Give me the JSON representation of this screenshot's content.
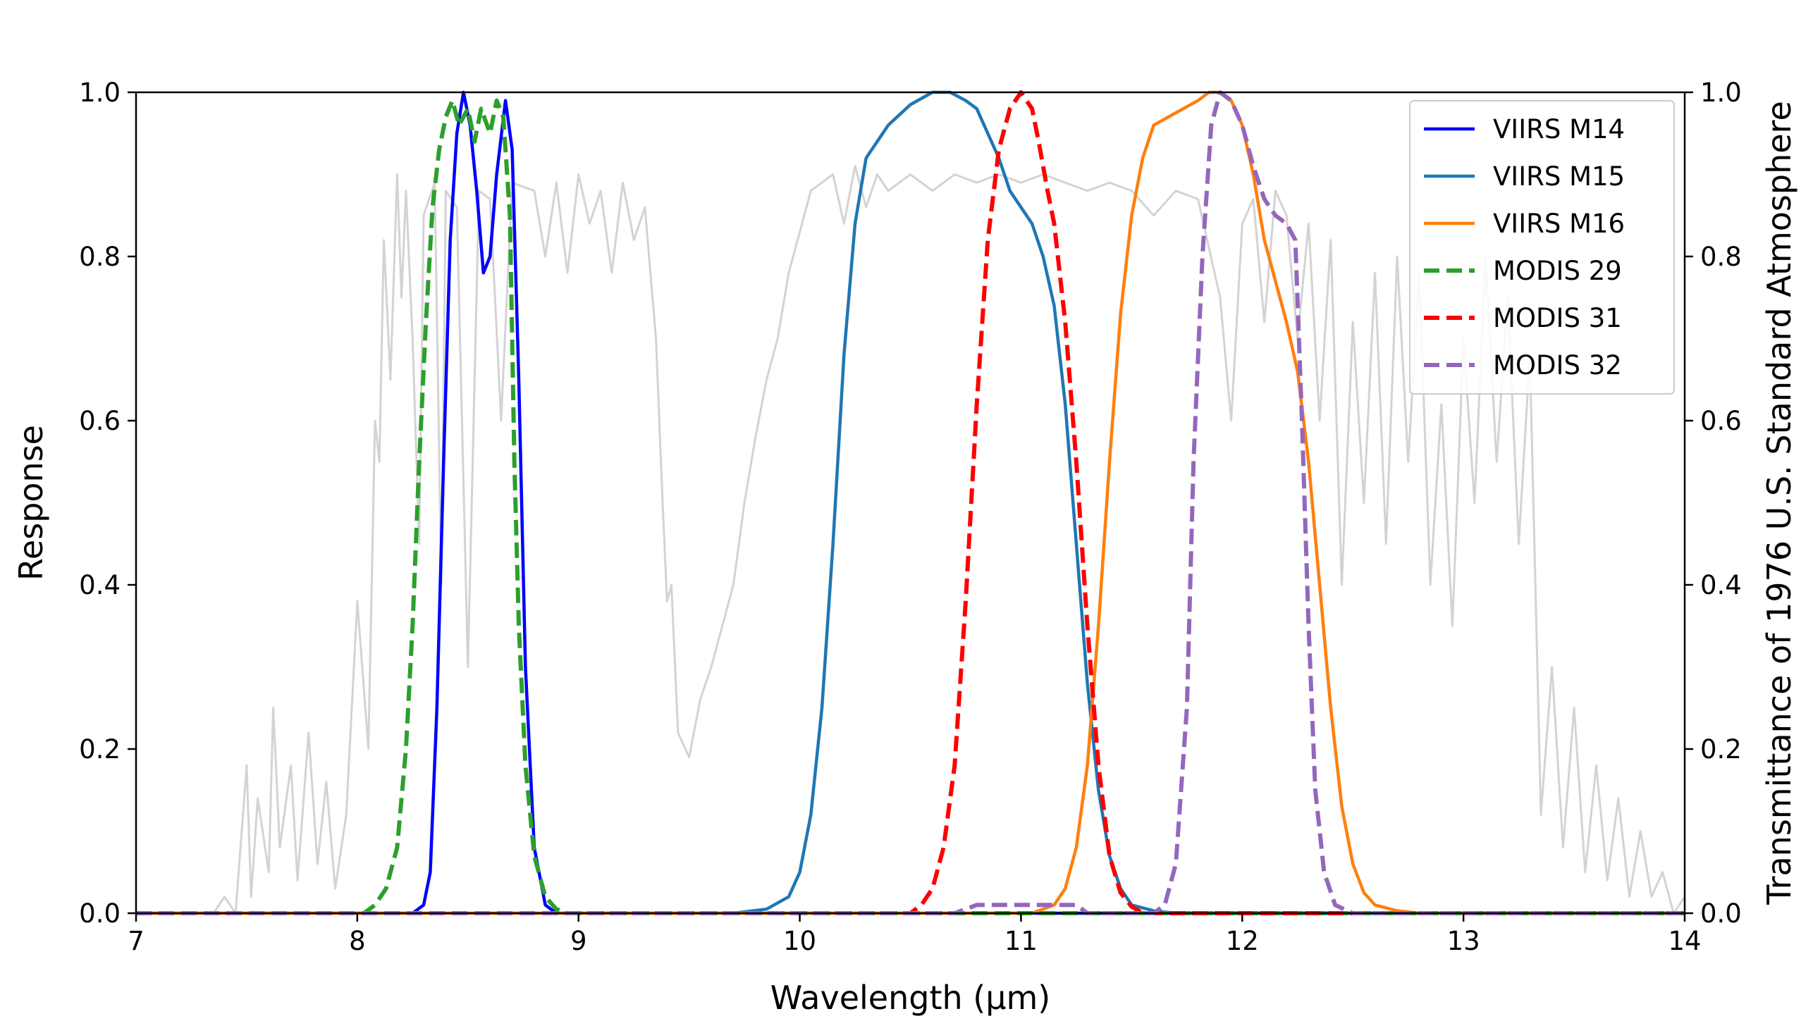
{
  "chart_data": {
    "type": "line",
    "xlabel": "Wavelength (μm)",
    "ylabel": "Response",
    "y2label": "Transmittance of 1976 U.S. Standard Atmosphere",
    "xlim": [
      7,
      14
    ],
    "ylim": [
      0,
      1.0
    ],
    "y2lim": [
      0,
      1.0
    ],
    "xticks": [
      "7",
      "8",
      "9",
      "10",
      "11",
      "12",
      "13",
      "14"
    ],
    "yticks": [
      "0.0",
      "0.2",
      "0.4",
      "0.6",
      "0.8",
      "1.0"
    ],
    "y2ticks": [
      "0.0",
      "0.2",
      "0.4",
      "0.6",
      "0.8",
      "1.0"
    ],
    "grid": false,
    "legend_position": "top-right",
    "background_series": {
      "name": "Transmittance",
      "axis": "right",
      "color": "#d3d3d3",
      "points": [
        [
          7.0,
          0.0
        ],
        [
          7.35,
          0.0
        ],
        [
          7.4,
          0.02
        ],
        [
          7.45,
          0.0
        ],
        [
          7.5,
          0.18
        ],
        [
          7.52,
          0.02
        ],
        [
          7.55,
          0.14
        ],
        [
          7.6,
          0.05
        ],
        [
          7.62,
          0.25
        ],
        [
          7.65,
          0.08
        ],
        [
          7.7,
          0.18
        ],
        [
          7.73,
          0.04
        ],
        [
          7.78,
          0.22
        ],
        [
          7.82,
          0.06
        ],
        [
          7.86,
          0.16
        ],
        [
          7.9,
          0.03
        ],
        [
          7.95,
          0.12
        ],
        [
          8.0,
          0.38
        ],
        [
          8.05,
          0.2
        ],
        [
          8.08,
          0.6
        ],
        [
          8.1,
          0.55
        ],
        [
          8.12,
          0.82
        ],
        [
          8.15,
          0.65
        ],
        [
          8.18,
          0.9
        ],
        [
          8.2,
          0.75
        ],
        [
          8.22,
          0.88
        ],
        [
          8.25,
          0.7
        ],
        [
          8.28,
          0.45
        ],
        [
          8.3,
          0.85
        ],
        [
          8.35,
          0.89
        ],
        [
          8.38,
          0.4
        ],
        [
          8.4,
          0.88
        ],
        [
          8.45,
          0.86
        ],
        [
          8.5,
          0.3
        ],
        [
          8.55,
          0.88
        ],
        [
          8.6,
          0.87
        ],
        [
          8.65,
          0.6
        ],
        [
          8.7,
          0.89
        ],
        [
          8.8,
          0.88
        ],
        [
          8.85,
          0.8
        ],
        [
          8.9,
          0.89
        ],
        [
          8.95,
          0.78
        ],
        [
          9.0,
          0.9
        ],
        [
          9.05,
          0.84
        ],
        [
          9.1,
          0.88
        ],
        [
          9.15,
          0.78
        ],
        [
          9.2,
          0.89
        ],
        [
          9.25,
          0.82
        ],
        [
          9.3,
          0.86
        ],
        [
          9.35,
          0.7
        ],
        [
          9.38,
          0.5
        ],
        [
          9.4,
          0.38
        ],
        [
          9.42,
          0.4
        ],
        [
          9.45,
          0.22
        ],
        [
          9.5,
          0.19
        ],
        [
          9.55,
          0.26
        ],
        [
          9.6,
          0.3
        ],
        [
          9.65,
          0.35
        ],
        [
          9.7,
          0.4
        ],
        [
          9.75,
          0.5
        ],
        [
          9.8,
          0.58
        ],
        [
          9.85,
          0.65
        ],
        [
          9.9,
          0.7
        ],
        [
          9.95,
          0.78
        ],
        [
          10.0,
          0.83
        ],
        [
          10.05,
          0.88
        ],
        [
          10.1,
          0.89
        ],
        [
          10.15,
          0.9
        ],
        [
          10.2,
          0.84
        ],
        [
          10.25,
          0.91
        ],
        [
          10.3,
          0.86
        ],
        [
          10.35,
          0.9
        ],
        [
          10.4,
          0.88
        ],
        [
          10.5,
          0.9
        ],
        [
          10.6,
          0.88
        ],
        [
          10.7,
          0.9
        ],
        [
          10.8,
          0.89
        ],
        [
          10.9,
          0.9
        ],
        [
          11.0,
          0.89
        ],
        [
          11.1,
          0.9
        ],
        [
          11.2,
          0.89
        ],
        [
          11.3,
          0.88
        ],
        [
          11.4,
          0.89
        ],
        [
          11.5,
          0.88
        ],
        [
          11.6,
          0.85
        ],
        [
          11.7,
          0.88
        ],
        [
          11.8,
          0.87
        ],
        [
          11.9,
          0.75
        ],
        [
          11.95,
          0.6
        ],
        [
          12.0,
          0.84
        ],
        [
          12.05,
          0.87
        ],
        [
          12.1,
          0.72
        ],
        [
          12.15,
          0.88
        ],
        [
          12.2,
          0.85
        ],
        [
          12.25,
          0.7
        ],
        [
          12.3,
          0.84
        ],
        [
          12.35,
          0.6
        ],
        [
          12.4,
          0.82
        ],
        [
          12.45,
          0.4
        ],
        [
          12.5,
          0.72
        ],
        [
          12.55,
          0.5
        ],
        [
          12.6,
          0.78
        ],
        [
          12.65,
          0.45
        ],
        [
          12.7,
          0.8
        ],
        [
          12.75,
          0.55
        ],
        [
          12.8,
          0.78
        ],
        [
          12.85,
          0.4
        ],
        [
          12.9,
          0.62
        ],
        [
          12.95,
          0.35
        ],
        [
          13.0,
          0.7
        ],
        [
          13.05,
          0.5
        ],
        [
          13.1,
          0.8
        ],
        [
          13.15,
          0.55
        ],
        [
          13.2,
          0.75
        ],
        [
          13.25,
          0.45
        ],
        [
          13.3,
          0.68
        ],
        [
          13.35,
          0.12
        ],
        [
          13.4,
          0.3
        ],
        [
          13.45,
          0.08
        ],
        [
          13.5,
          0.25
        ],
        [
          13.55,
          0.05
        ],
        [
          13.6,
          0.18
        ],
        [
          13.65,
          0.04
        ],
        [
          13.7,
          0.14
        ],
        [
          13.75,
          0.02
        ],
        [
          13.8,
          0.1
        ],
        [
          13.85,
          0.02
        ],
        [
          13.9,
          0.05
        ],
        [
          13.95,
          0.0
        ],
        [
          14.0,
          0.02
        ]
      ]
    },
    "series": [
      {
        "name": "VIIRS M14",
        "color": "#0000ff",
        "dash": "solid",
        "width": 4.5,
        "points": [
          [
            7.0,
            0.0
          ],
          [
            8.25,
            0.0
          ],
          [
            8.3,
            0.01
          ],
          [
            8.33,
            0.05
          ],
          [
            8.36,
            0.25
          ],
          [
            8.39,
            0.55
          ],
          [
            8.42,
            0.82
          ],
          [
            8.45,
            0.95
          ],
          [
            8.48,
            1.0
          ],
          [
            8.51,
            0.96
          ],
          [
            8.54,
            0.88
          ],
          [
            8.57,
            0.78
          ],
          [
            8.6,
            0.8
          ],
          [
            8.63,
            0.9
          ],
          [
            8.67,
            0.99
          ],
          [
            8.7,
            0.93
          ],
          [
            8.73,
            0.65
          ],
          [
            8.76,
            0.3
          ],
          [
            8.8,
            0.08
          ],
          [
            8.85,
            0.01
          ],
          [
            8.9,
            0.0
          ],
          [
            14.0,
            0.0
          ]
        ]
      },
      {
        "name": "VIIRS M15",
        "color": "#1f77b4",
        "dash": "solid",
        "width": 4.5,
        "points": [
          [
            7.0,
            0.0
          ],
          [
            9.7,
            0.0
          ],
          [
            9.85,
            0.005
          ],
          [
            9.95,
            0.02
          ],
          [
            10.0,
            0.05
          ],
          [
            10.05,
            0.12
          ],
          [
            10.1,
            0.25
          ],
          [
            10.15,
            0.45
          ],
          [
            10.2,
            0.68
          ],
          [
            10.25,
            0.84
          ],
          [
            10.3,
            0.92
          ],
          [
            10.4,
            0.96
          ],
          [
            10.5,
            0.985
          ],
          [
            10.6,
            1.0
          ],
          [
            10.68,
            1.0
          ],
          [
            10.75,
            0.99
          ],
          [
            10.8,
            0.98
          ],
          [
            10.85,
            0.95
          ],
          [
            10.9,
            0.92
          ],
          [
            10.95,
            0.88
          ],
          [
            11.0,
            0.86
          ],
          [
            11.05,
            0.84
          ],
          [
            11.1,
            0.8
          ],
          [
            11.15,
            0.74
          ],
          [
            11.2,
            0.62
          ],
          [
            11.25,
            0.45
          ],
          [
            11.3,
            0.28
          ],
          [
            11.35,
            0.15
          ],
          [
            11.4,
            0.07
          ],
          [
            11.45,
            0.03
          ],
          [
            11.5,
            0.01
          ],
          [
            11.6,
            0.003
          ],
          [
            11.7,
            0.0
          ],
          [
            14.0,
            0.0
          ]
        ]
      },
      {
        "name": "VIIRS M16",
        "color": "#ff7f0e",
        "dash": "solid",
        "width": 4.5,
        "points": [
          [
            7.0,
            0.0
          ],
          [
            11.05,
            0.0
          ],
          [
            11.1,
            0.005
          ],
          [
            11.15,
            0.01
          ],
          [
            11.2,
            0.03
          ],
          [
            11.25,
            0.08
          ],
          [
            11.3,
            0.18
          ],
          [
            11.35,
            0.35
          ],
          [
            11.4,
            0.55
          ],
          [
            11.45,
            0.73
          ],
          [
            11.5,
            0.85
          ],
          [
            11.55,
            0.92
          ],
          [
            11.6,
            0.96
          ],
          [
            11.7,
            0.975
          ],
          [
            11.8,
            0.99
          ],
          [
            11.85,
            1.0
          ],
          [
            11.9,
            1.0
          ],
          [
            11.95,
            0.99
          ],
          [
            12.0,
            0.96
          ],
          [
            12.05,
            0.9
          ],
          [
            12.1,
            0.82
          ],
          [
            12.15,
            0.77
          ],
          [
            12.2,
            0.72
          ],
          [
            12.25,
            0.66
          ],
          [
            12.3,
            0.55
          ],
          [
            12.35,
            0.4
          ],
          [
            12.4,
            0.25
          ],
          [
            12.45,
            0.13
          ],
          [
            12.5,
            0.06
          ],
          [
            12.55,
            0.025
          ],
          [
            12.6,
            0.01
          ],
          [
            12.7,
            0.003
          ],
          [
            12.8,
            0.0
          ],
          [
            14.0,
            0.0
          ]
        ]
      },
      {
        "name": "MODIS 29",
        "color": "#2ca02c",
        "dash": "dashed",
        "width": 6,
        "points": [
          [
            7.0,
            0.0
          ],
          [
            8.03,
            0.0
          ],
          [
            8.08,
            0.01
          ],
          [
            8.13,
            0.03
          ],
          [
            8.18,
            0.08
          ],
          [
            8.22,
            0.2
          ],
          [
            8.25,
            0.35
          ],
          [
            8.28,
            0.55
          ],
          [
            8.31,
            0.72
          ],
          [
            8.34,
            0.86
          ],
          [
            8.37,
            0.93
          ],
          [
            8.4,
            0.97
          ],
          [
            8.43,
            0.99
          ],
          [
            8.46,
            0.96
          ],
          [
            8.5,
            0.98
          ],
          [
            8.53,
            0.94
          ],
          [
            8.56,
            0.98
          ],
          [
            8.6,
            0.95
          ],
          [
            8.63,
            0.99
          ],
          [
            8.66,
            0.97
          ],
          [
            8.69,
            0.85
          ],
          [
            8.71,
            0.55
          ],
          [
            8.73,
            0.35
          ],
          [
            8.76,
            0.18
          ],
          [
            8.8,
            0.07
          ],
          [
            8.85,
            0.02
          ],
          [
            8.9,
            0.005
          ],
          [
            8.95,
            0.0
          ],
          [
            14.0,
            0.0
          ]
        ]
      },
      {
        "name": "MODIS 31",
        "color": "#ff0000",
        "dash": "dashed",
        "width": 6,
        "points": [
          [
            7.0,
            0.0
          ],
          [
            10.5,
            0.0
          ],
          [
            10.55,
            0.01
          ],
          [
            10.6,
            0.03
          ],
          [
            10.65,
            0.08
          ],
          [
            10.7,
            0.18
          ],
          [
            10.75,
            0.38
          ],
          [
            10.8,
            0.62
          ],
          [
            10.85,
            0.82
          ],
          [
            10.9,
            0.93
          ],
          [
            10.95,
            0.98
          ],
          [
            11.0,
            1.0
          ],
          [
            11.05,
            0.98
          ],
          [
            11.08,
            0.94
          ],
          [
            11.12,
            0.88
          ],
          [
            11.15,
            0.84
          ],
          [
            11.2,
            0.72
          ],
          [
            11.25,
            0.55
          ],
          [
            11.3,
            0.35
          ],
          [
            11.35,
            0.18
          ],
          [
            11.4,
            0.07
          ],
          [
            11.45,
            0.025
          ],
          [
            11.5,
            0.008
          ],
          [
            11.55,
            0.0
          ],
          [
            14.0,
            0.0
          ]
        ]
      },
      {
        "name": "MODIS 32",
        "color": "#9467bd",
        "dash": "dashed",
        "width": 6,
        "points": [
          [
            7.0,
            0.0
          ],
          [
            10.7,
            0.0
          ],
          [
            10.8,
            0.01
          ],
          [
            11.25,
            0.01
          ],
          [
            11.3,
            0.0
          ],
          [
            11.6,
            0.0
          ],
          [
            11.65,
            0.01
          ],
          [
            11.7,
            0.06
          ],
          [
            11.75,
            0.25
          ],
          [
            11.78,
            0.55
          ],
          [
            11.82,
            0.8
          ],
          [
            11.86,
            0.96
          ],
          [
            11.9,
            1.0
          ],
          [
            11.95,
            0.99
          ],
          [
            12.0,
            0.96
          ],
          [
            12.05,
            0.91
          ],
          [
            12.1,
            0.87
          ],
          [
            12.15,
            0.85
          ],
          [
            12.2,
            0.84
          ],
          [
            12.24,
            0.82
          ],
          [
            12.27,
            0.6
          ],
          [
            12.3,
            0.35
          ],
          [
            12.33,
            0.15
          ],
          [
            12.37,
            0.05
          ],
          [
            12.42,
            0.01
          ],
          [
            12.5,
            0.0
          ],
          [
            14.0,
            0.0
          ]
        ]
      }
    ]
  }
}
